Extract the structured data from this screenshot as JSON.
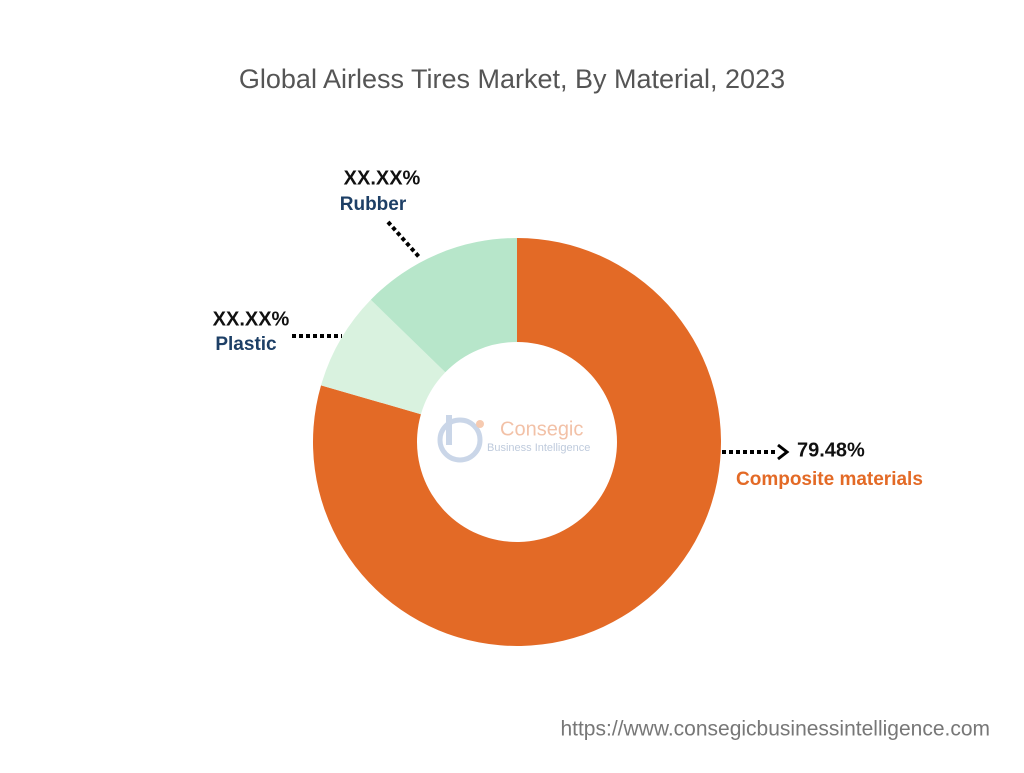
{
  "chart_data": {
    "type": "donut",
    "title": "Global Airless Tires Market, By Material, 2023",
    "categories": [
      "Composite materials",
      "Plastic",
      "Rubber"
    ],
    "values": [
      79.48,
      7.8,
      12.72
    ],
    "value_labels": [
      "79.48%",
      "XX.XX%",
      "XX.XX%"
    ],
    "colors": [
      "#e36a26",
      "#d9f2df",
      "#b7e6ca"
    ]
  },
  "watermark": {
    "name": "Consegic",
    "tagline": "Business Intelligence"
  },
  "footer": {
    "url": "https://www.consegicbusinessintelligence.com"
  }
}
